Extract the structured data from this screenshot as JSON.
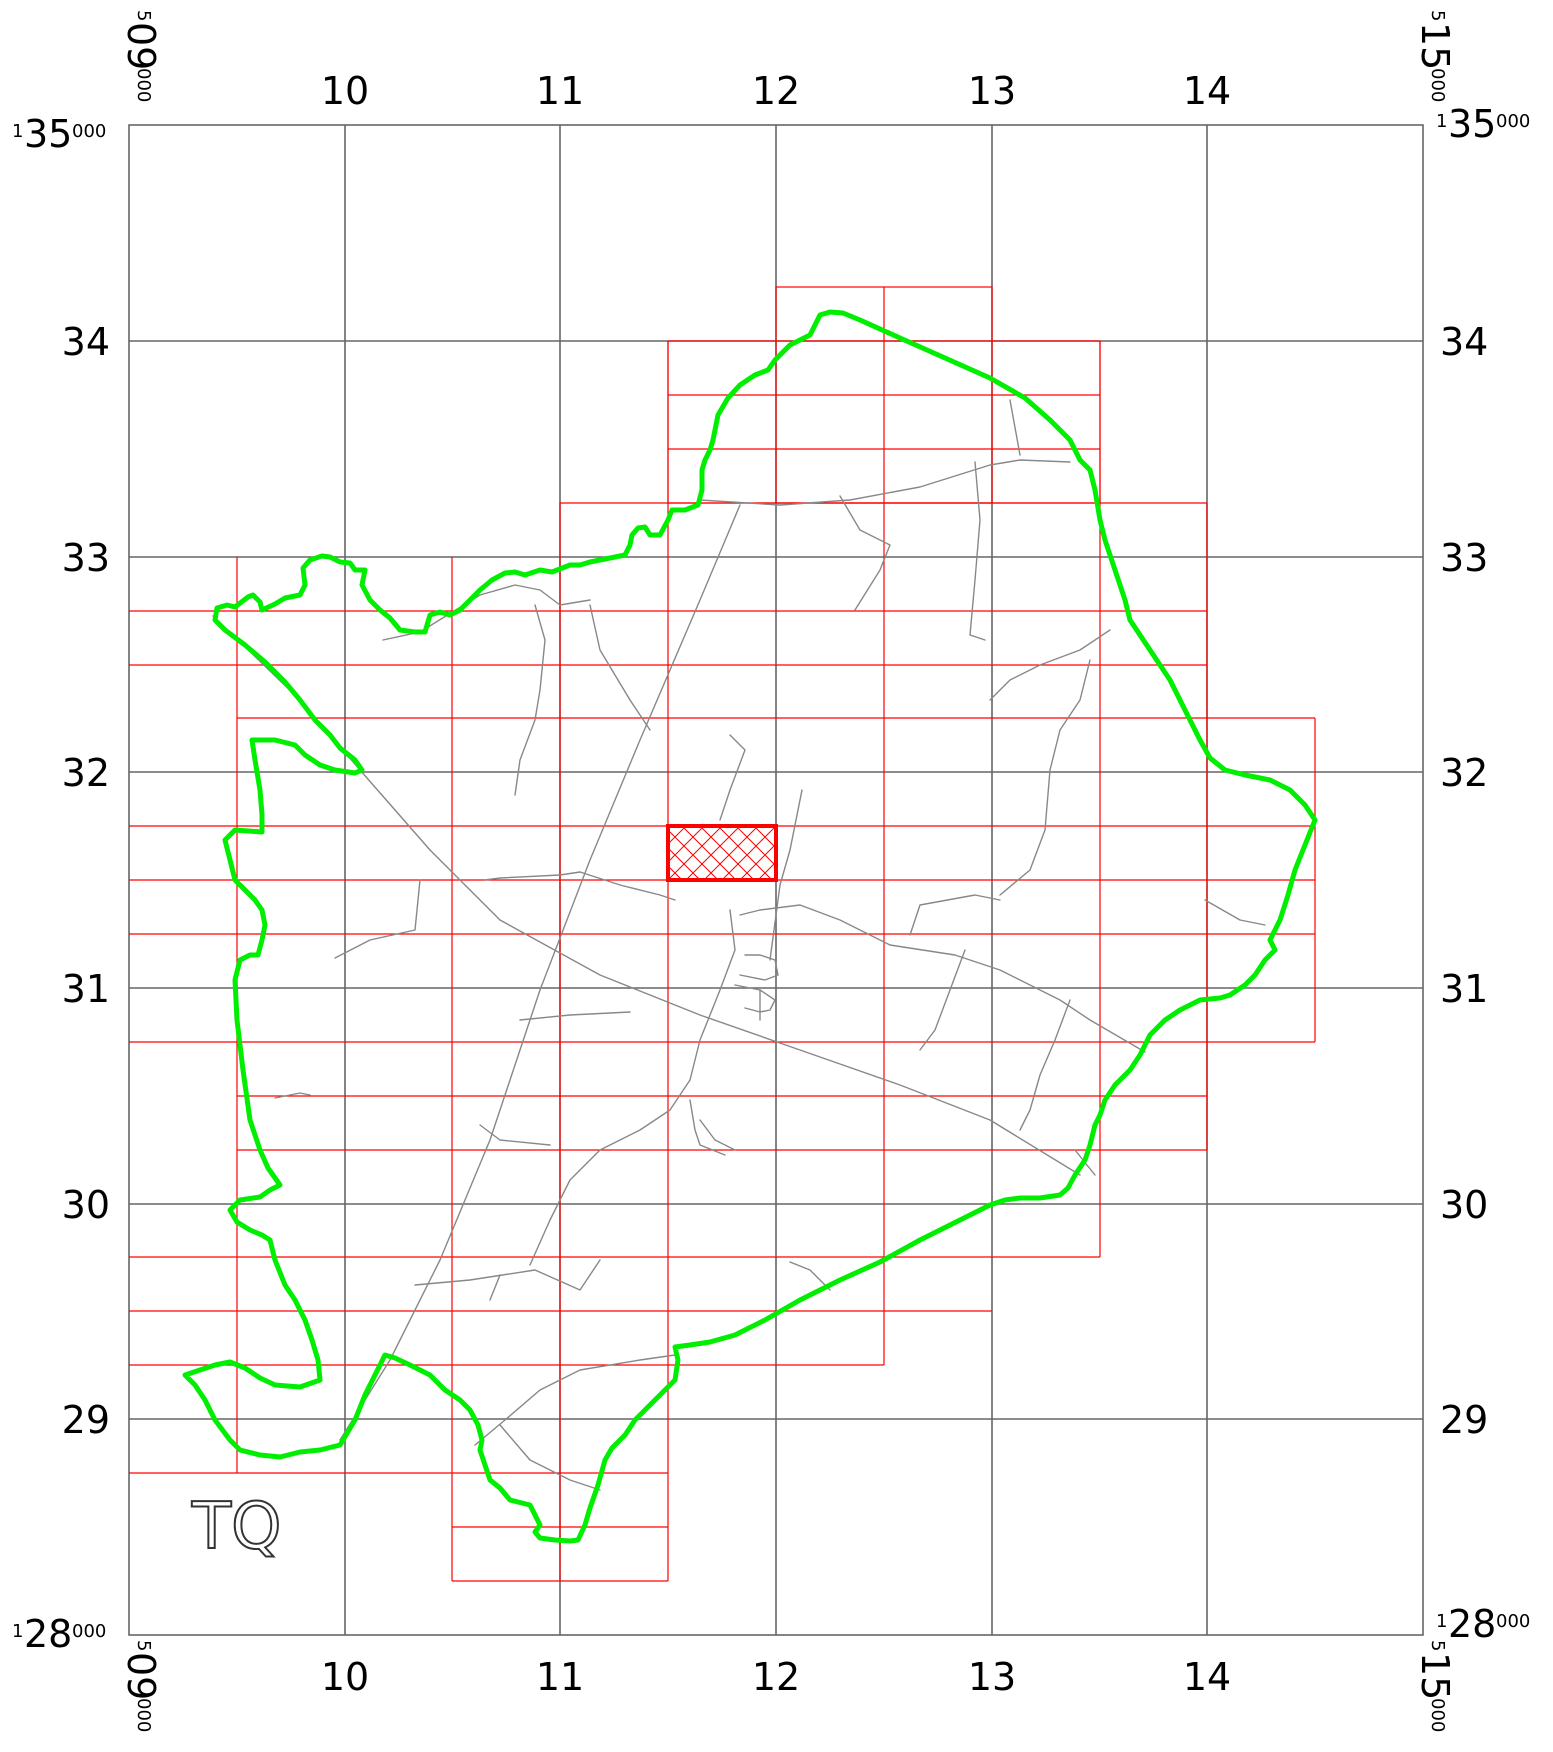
{
  "map": {
    "grid_square": "TQ",
    "easting_ticks": [
      "10",
      "11",
      "12",
      "13",
      "14"
    ],
    "northing_ticks": [
      "34",
      "33",
      "32",
      "31",
      "30",
      "29"
    ],
    "corner_west_prefix": "5",
    "corner_west_value": "09",
    "corner_west_suffix": "000",
    "corner_east_prefix": "5",
    "corner_east_value": "15",
    "corner_east_suffix": "000",
    "corner_north_prefix": "1",
    "corner_north_value": "35",
    "corner_north_suffix": "000",
    "corner_south_prefix": "1",
    "corner_south_value": "28",
    "corner_south_suffix": "000",
    "colors": {
      "grid": "#666666",
      "tiles": "#ff0000",
      "selected_tile": "#ff0000",
      "boundary": "#00ee00",
      "roads": "#888888"
    },
    "selected_tile": {
      "easting_from": 11.5,
      "easting_to": 12.0,
      "northing_from": 31.5,
      "northing_to": 31.75
    }
  }
}
